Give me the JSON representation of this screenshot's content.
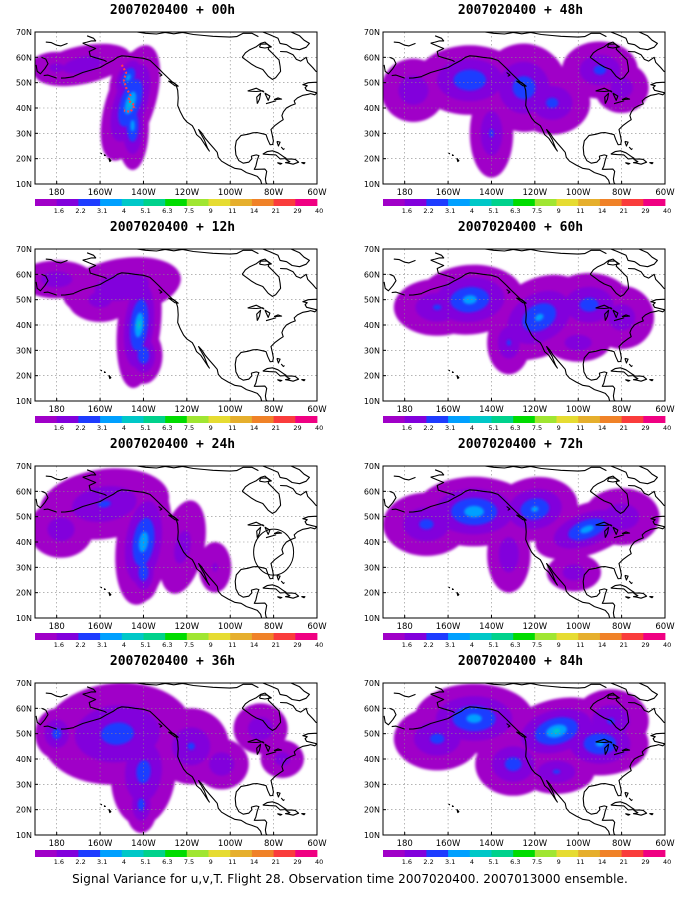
{
  "caption": "Signal Variance for u,v,T. Flight 28. Observation time 2007020400. 2007013000 ensemble.",
  "panels": [
    {
      "title": "2007020400 + 00h",
      "lead": 0
    },
    {
      "title": "2007020400 + 48h",
      "lead": 48
    },
    {
      "title": "2007020400 + 12h",
      "lead": 12
    },
    {
      "title": "2007020400 + 60h",
      "lead": 60
    },
    {
      "title": "2007020400 + 24h",
      "lead": 24
    },
    {
      "title": "2007020400 + 72h",
      "lead": 72
    },
    {
      "title": "2007020400 + 36h",
      "lead": 36
    },
    {
      "title": "2007020400 + 84h",
      "lead": 84
    }
  ],
  "map": {
    "lon_range": [
      -190,
      -60
    ],
    "lat_range": [
      10,
      70
    ],
    "lat_ticks": [
      "10N",
      "20N",
      "30N",
      "40N",
      "50N",
      "60N",
      "70N"
    ],
    "lon_ticks": [
      "180",
      "160W",
      "140W",
      "120W",
      "100W",
      "80W",
      "60W"
    ],
    "grid": true
  },
  "colorbar": {
    "labels": [
      "1.6",
      "2.2",
      "3.1",
      "4",
      "5.1",
      "6.3",
      "7.5",
      "9",
      "11",
      "14",
      "21",
      "29",
      "40"
    ],
    "colors": [
      "#a000c8",
      "#8200dc",
      "#1e3cff",
      "#00a0ff",
      "#00c8c8",
      "#00d28c",
      "#00dc00",
      "#a0e632",
      "#e6dc32",
      "#e6af2d",
      "#f08228",
      "#fa3c3c",
      "#f00082"
    ]
  },
  "annotations": {
    "flight_track_color": "#ff3c50",
    "observation_circle": "circle in 24h panel"
  }
}
